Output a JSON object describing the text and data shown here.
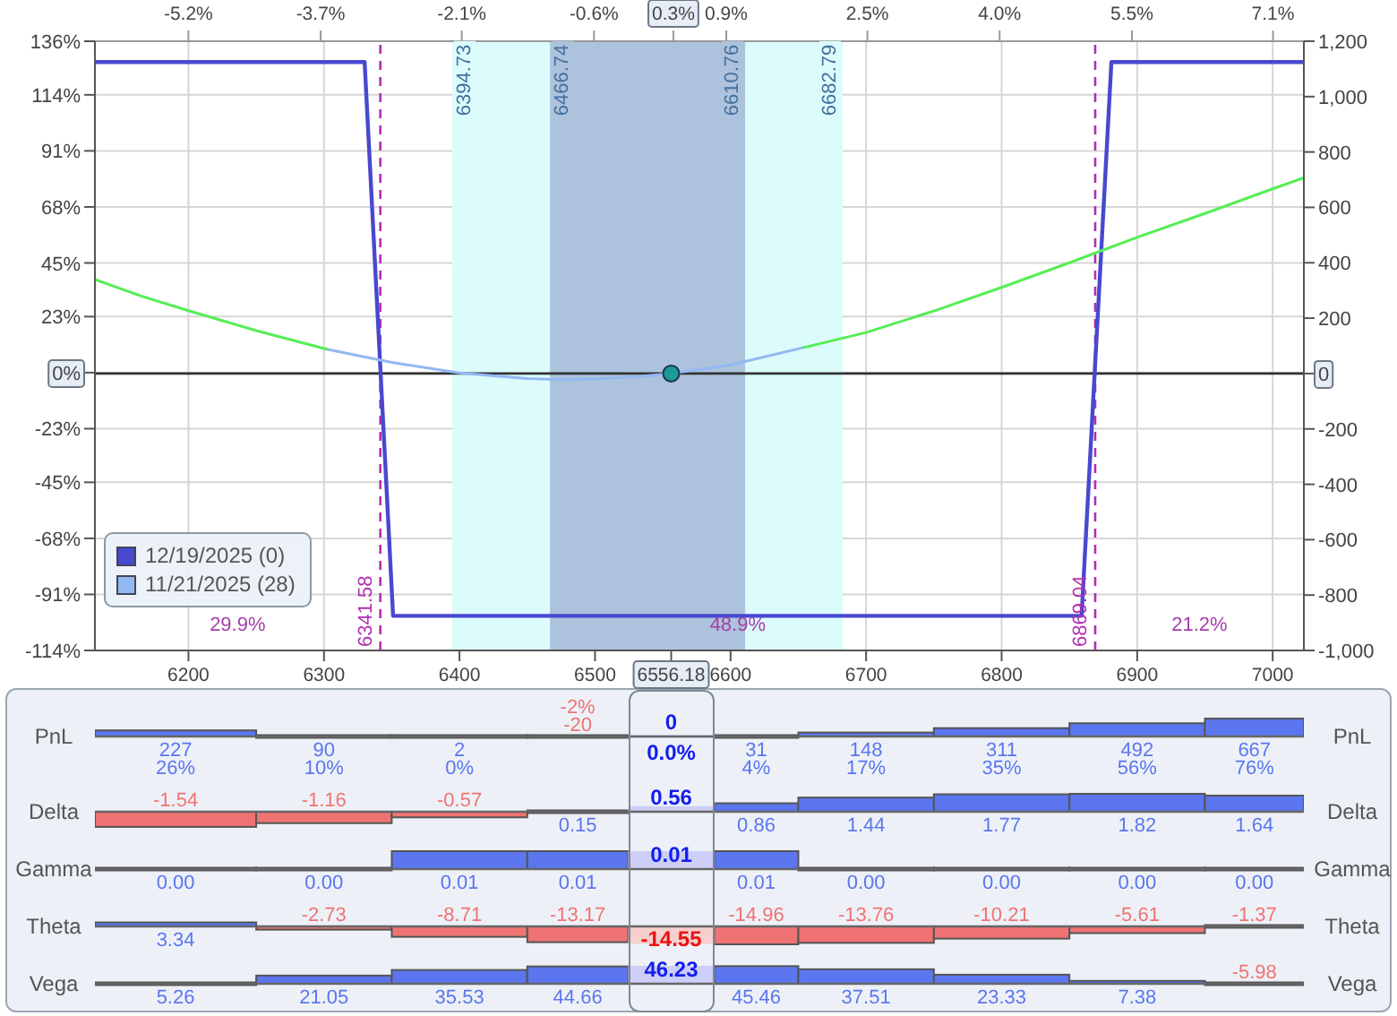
{
  "chart_data": [
    {
      "type": "line",
      "xlim": [
        6131,
        7023
      ],
      "xticks": [
        6200,
        6300,
        6400,
        6500,
        6556.18,
        6600,
        6700,
        6800,
        6900,
        7000
      ],
      "x2lim": [
        -6.26,
        7.45
      ],
      "x2ticks": [
        {
          "value": -5.2,
          "label": "-5.2%"
        },
        {
          "value": -3.7,
          "label": "-3.7%"
        },
        {
          "value": -2.1,
          "label": "-2.1%"
        },
        {
          "value": -0.6,
          "label": "-0.6%"
        },
        {
          "value": 0.3,
          "label": "0.3%"
        },
        {
          "value": 0.9,
          "label": "0.9%"
        },
        {
          "value": 2.5,
          "label": "2.5%"
        },
        {
          "value": 4.0,
          "label": "4.0%"
        },
        {
          "value": 5.5,
          "label": "5.5%"
        },
        {
          "value": 7.1,
          "label": "7.1%"
        }
      ],
      "ylim": [
        -114,
        136
      ],
      "yticks": [
        {
          "value": 136,
          "label": "136%"
        },
        {
          "value": 114,
          "label": "114%"
        },
        {
          "value": 91,
          "label": "91%"
        },
        {
          "value": 68,
          "label": "68%"
        },
        {
          "value": 45,
          "label": "45%"
        },
        {
          "value": 23,
          "label": "23%"
        },
        {
          "value": 0,
          "label": "0%"
        },
        {
          "value": -23,
          "label": "-23%"
        },
        {
          "value": -45,
          "label": "-45%"
        },
        {
          "value": -68,
          "label": "-68%"
        },
        {
          "value": -91,
          "label": "-91%"
        },
        {
          "value": -114,
          "label": "-114%"
        }
      ],
      "y2lim": [
        -1000,
        1200
      ],
      "y2ticks": [
        {
          "value": 1200,
          "label": "1,200"
        },
        {
          "value": 1000,
          "label": "1,000"
        },
        800,
        600,
        400,
        200,
        0,
        -200,
        -400,
        -600,
        -800,
        {
          "value": -1000,
          "label": "-1,000"
        }
      ],
      "series": [
        {
          "name": "12/19/2025 (0)",
          "color": "#4848d0",
          "axis": "y2",
          "x": [
            6131,
            6330,
            6351,
            6859,
            6881,
            7023
          ],
          "values": [
            1125,
            1125,
            -875,
            -875,
            1125,
            1125
          ]
        },
        {
          "name": "11/21/2025 (28)",
          "color": "#92b8f2",
          "axis": "y2",
          "x": [
            6302,
            6350,
            6400,
            6450,
            6475,
            6500,
            6530,
            6556.18,
            6600,
            6654
          ],
          "values": [
            88,
            40,
            2,
            -18,
            -22,
            -20,
            -12,
            0,
            31,
            94
          ]
        },
        {
          "color": "#55ee55",
          "axis": "y2",
          "x": [
            6131,
            6165,
            6200,
            6250,
            6302,
            6478,
            6654,
            6700,
            6750,
            6800,
            6850,
            6900,
            6950,
            7000,
            7023
          ],
          "values": [
            340,
            280,
            227,
            155,
            88,
            null,
            94,
            148,
            226,
            311,
            400,
            492,
            578,
            667,
            707
          ]
        },
        {
          "type": "scatter",
          "color": "#1a9a9a",
          "axis": "y2",
          "marker": "circle",
          "x": [
            6556.18
          ],
          "values": [
            0
          ]
        }
      ],
      "bands": [
        {
          "axis": "x",
          "from": 6394.73,
          "to": 6682.79,
          "color": "#dcfcfc"
        },
        {
          "axis": "x",
          "from": 6466.74,
          "to": 6610.76,
          "color": "#adc2dc"
        }
      ],
      "ref_lines": [
        {
          "axis": "y2",
          "value": 0,
          "color": "#333333"
        },
        {
          "axis": "x",
          "value": 6341.58,
          "label": "6341.58",
          "color": "#b030b0",
          "line_style": "dashed"
        },
        {
          "axis": "x",
          "value": 6869.04,
          "label": "6869.04",
          "color": "#b030b0",
          "line_style": "dashed"
        }
      ],
      "annotations": [
        {
          "text": "6394.73",
          "x": 6394.73,
          "y": 120
        },
        {
          "text": "6466.74",
          "x": 6466.74,
          "y": 120
        },
        {
          "text": "6610.76",
          "x": 6610.76,
          "y": 120
        },
        {
          "text": "6682.79",
          "x": 6682.79,
          "y": 120
        },
        "29.9%",
        "48.9%",
        "21.2%"
      ],
      "grid": true,
      "legend": "bottom left",
      "marker": "none"
    },
    {
      "type": "bar",
      "ylabel": "PnL",
      "y2label": "PnL",
      "xlim": [
        6131,
        7023
      ],
      "tick_labels": false,
      "series": [
        {
          "x": [
            6200,
            6300,
            6400,
            6500,
            6600,
            6700,
            6800,
            6900,
            7000
          ],
          "values": [
            227,
            90,
            2,
            -20,
            31,
            148,
            311,
            492,
            667
          ],
          "colors": [
            "#5b76ef",
            "#5b76ef",
            "#5b76ef",
            "#f07373",
            "#5b76ef",
            "#5b76ef",
            "#5b76ef",
            "#5b76ef",
            "#5b76ef"
          ],
          "value_labels": [
            "227",
            "90",
            "2",
            "-20",
            "31",
            "148",
            "311",
            "492",
            "667"
          ]
        },
        {
          "x": [
            6556.18
          ],
          "values": [
            0
          ],
          "color": "#cccef7",
          "value_labels": [
            "0"
          ]
        }
      ],
      "annotations": [
        {
          "text": "26%",
          "x": 6200,
          "y": 227
        },
        {
          "text": "10%",
          "x": 6300,
          "y": 90
        },
        {
          "text": "0%",
          "x": 6400,
          "y": 2
        },
        {
          "text": "-2%",
          "x": 6500,
          "y": -20
        },
        {
          "text": "4%",
          "x": 6600,
          "y": 31
        },
        {
          "text": "17%",
          "x": 6700,
          "y": 148
        },
        {
          "text": "35%",
          "x": 6800,
          "y": 311
        },
        {
          "text": "56%",
          "x": 6900,
          "y": 492
        },
        {
          "text": "76%",
          "x": 7000,
          "y": 667
        },
        {
          "text": "0.0%",
          "x": 6556.18,
          "y": 0
        }
      ]
    },
    {
      "type": "bar",
      "ylabel": "Delta",
      "y2label": "Delta",
      "xlim": [
        6131,
        7023
      ],
      "tick_labels": false,
      "series": [
        {
          "x": [
            6200,
            6300,
            6400,
            6500,
            6600,
            6700,
            6800,
            6900,
            7000
          ],
          "values": [
            -1.54,
            -1.16,
            -0.57,
            0.15,
            0.86,
            1.44,
            1.77,
            1.82,
            1.64
          ],
          "colors": [
            "#f07373",
            "#f07373",
            "#f07373",
            "#5b76ef",
            "#5b76ef",
            "#5b76ef",
            "#5b76ef",
            "#5b76ef",
            "#5b76ef"
          ],
          "value_labels": [
            "-1.54",
            "-1.16",
            "-0.57",
            "0.15",
            "0.86",
            "1.44",
            "1.77",
            "1.82",
            "1.64"
          ]
        },
        {
          "x": [
            6556.18
          ],
          "values": [
            0.56
          ],
          "color": "#cccef7",
          "value_labels": [
            "0.56"
          ]
        }
      ]
    },
    {
      "type": "bar",
      "ylabel": "Gamma",
      "y2label": "Gamma",
      "xlim": [
        6131,
        7023
      ],
      "tick_labels": false,
      "series": [
        {
          "x": [
            6200,
            6300,
            6400,
            6500,
            6600,
            6700,
            6800,
            6900,
            7000
          ],
          "values": [
            0,
            0,
            0.01,
            0.01,
            0.01,
            0,
            0,
            0,
            0
          ],
          "colors": [
            "#5b76ef",
            "#5b76ef",
            "#5b76ef",
            "#5b76ef",
            "#5b76ef",
            "#5b76ef",
            "#5b76ef",
            "#5b76ef",
            "#5b76ef"
          ],
          "value_labels": [
            "0.00",
            "0.00",
            "0.01",
            "0.01",
            "0.01",
            "0.00",
            "0.00",
            "0.00",
            "0.00"
          ]
        },
        {
          "x": [
            6556.18
          ],
          "values": [
            0.01
          ],
          "color": "#cccef7",
          "value_labels": [
            "0.01"
          ]
        }
      ]
    },
    {
      "type": "bar",
      "ylabel": "Theta",
      "y2label": "Theta",
      "xlim": [
        6131,
        7023
      ],
      "tick_labels": false,
      "series": [
        {
          "x": [
            6200,
            6300,
            6400,
            6500,
            6600,
            6700,
            6800,
            6900,
            7000
          ],
          "values": [
            3.34,
            -2.73,
            -8.71,
            -13.17,
            -14.96,
            -13.76,
            -10.21,
            -5.61,
            -1.37
          ],
          "colors": [
            "#5b76ef",
            "#f07373",
            "#f07373",
            "#f07373",
            "#f07373",
            "#f07373",
            "#f07373",
            "#f07373",
            "#f07373"
          ],
          "value_labels": [
            "3.34",
            "-2.73",
            "-8.71",
            "-13.17",
            "-14.96",
            "-13.76",
            "-10.21",
            "-5.61",
            "-1.37"
          ]
        },
        {
          "x": [
            6556.18
          ],
          "values": [
            -14.55
          ],
          "color": "#f6cfcf",
          "value_labels": [
            "-14.55"
          ]
        }
      ]
    },
    {
      "type": "bar",
      "ylabel": "Vega",
      "y2label": "Vega",
      "xlim": [
        6131,
        7023
      ],
      "tick_labels": false,
      "series": [
        {
          "x": [
            6200,
            6300,
            6400,
            6500,
            6600,
            6700,
            6800,
            6900,
            7000
          ],
          "values": [
            5.26,
            21.05,
            35.53,
            44.66,
            45.46,
            37.51,
            23.33,
            7.38,
            -5.98
          ],
          "colors": [
            "#5b76ef",
            "#5b76ef",
            "#5b76ef",
            "#5b76ef",
            "#5b76ef",
            "#5b76ef",
            "#5b76ef",
            "#5b76ef",
            "#f07373"
          ],
          "value_labels": [
            "5.26",
            "21.05",
            "35.53",
            "44.66",
            "45.46",
            "37.51",
            "23.33",
            "7.38",
            "-5.98"
          ]
        },
        {
          "x": [
            6556.18
          ],
          "values": [
            46.23
          ],
          "color": "#cccef7",
          "value_labels": [
            "46.23"
          ]
        }
      ]
    }
  ]
}
